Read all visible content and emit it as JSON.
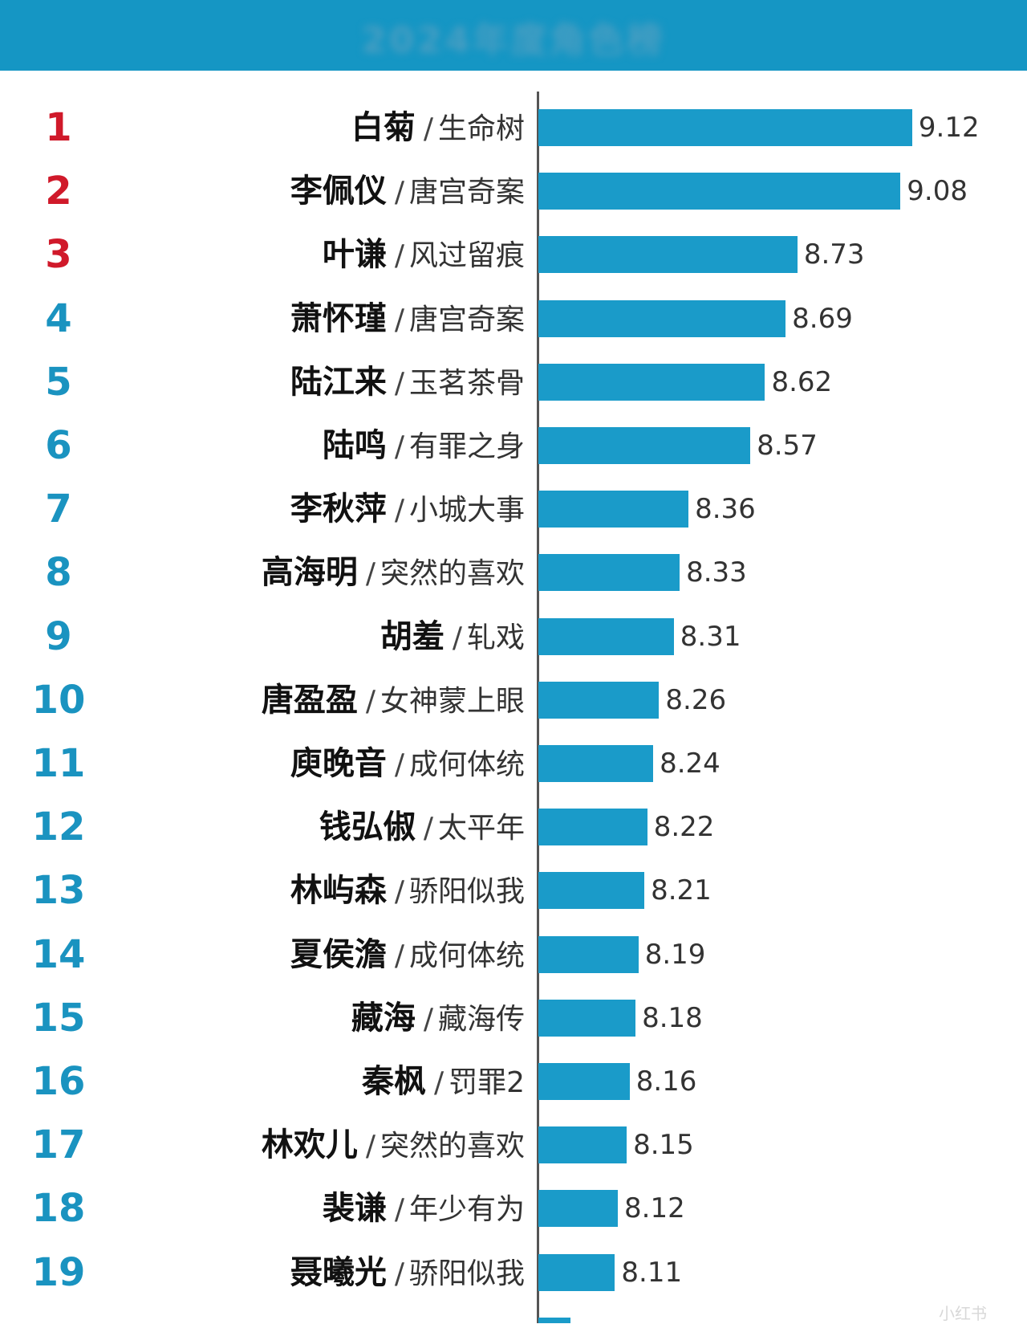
{
  "header": {
    "title": "2024年度角色榜"
  },
  "watermark": "小红书",
  "colors": {
    "header_bg": "#1596c4",
    "bar": "#1a9bc9",
    "rank_top": "#d0192a",
    "rank_other": "#1a93c0"
  },
  "chart_data": {
    "type": "bar",
    "orientation": "horizontal",
    "title": "2024年度角色榜",
    "xlabel": "",
    "ylabel": "",
    "separator": "/",
    "xlim": [
      7.85,
      9.45
    ],
    "rows": [
      {
        "rank": "1",
        "name": "白菊",
        "drama": "生命树",
        "value": 9.12,
        "label": "9.12"
      },
      {
        "rank": "2",
        "name": "李佩仪",
        "drama": "唐宫奇案",
        "value": 9.08,
        "label": "9.08"
      },
      {
        "rank": "3",
        "name": "叶谦",
        "drama": "风过留痕",
        "value": 8.73,
        "label": "8.73"
      },
      {
        "rank": "4",
        "name": "萧怀瑾",
        "drama": "唐宫奇案",
        "value": 8.69,
        "label": "8.69"
      },
      {
        "rank": "5",
        "name": "陆江来",
        "drama": "玉茗茶骨",
        "value": 8.62,
        "label": "8.62"
      },
      {
        "rank": "6",
        "name": "陆鸣",
        "drama": "有罪之身",
        "value": 8.57,
        "label": "8.57"
      },
      {
        "rank": "7",
        "name": "李秋萍",
        "drama": "小城大事",
        "value": 8.36,
        "label": "8.36"
      },
      {
        "rank": "8",
        "name": "高海明",
        "drama": "突然的喜欢",
        "value": 8.33,
        "label": "8.33"
      },
      {
        "rank": "9",
        "name": "胡羞",
        "drama": "轧戏",
        "value": 8.31,
        "label": "8.31"
      },
      {
        "rank": "10",
        "name": "唐盈盈",
        "drama": "女神蒙上眼",
        "value": 8.26,
        "label": "8.26"
      },
      {
        "rank": "11",
        "name": "庾晚音",
        "drama": "成何体统",
        "value": 8.24,
        "label": "8.24"
      },
      {
        "rank": "12",
        "name": "钱弘俶",
        "drama": "太平年",
        "value": 8.22,
        "label": "8.22"
      },
      {
        "rank": "13",
        "name": "林屿森",
        "drama": "骄阳似我",
        "value": 8.21,
        "label": "8.21"
      },
      {
        "rank": "14",
        "name": "夏侯澹",
        "drama": "成何体统",
        "value": 8.19,
        "label": "8.19"
      },
      {
        "rank": "15",
        "name": "藏海",
        "drama": "藏海传",
        "value": 8.18,
        "label": "8.18"
      },
      {
        "rank": "16",
        "name": "秦枫",
        "drama": "罚罪2",
        "value": 8.16,
        "label": "8.16"
      },
      {
        "rank": "17",
        "name": "林欢儿",
        "drama": "突然的喜欢",
        "value": 8.15,
        "label": "8.15"
      },
      {
        "rank": "18",
        "name": "裴谦",
        "drama": "年少有为",
        "value": 8.12,
        "label": "8.12"
      },
      {
        "rank": "19",
        "name": "聂曦光",
        "drama": "骄阳似我",
        "value": 8.11,
        "label": "8.11"
      }
    ]
  }
}
